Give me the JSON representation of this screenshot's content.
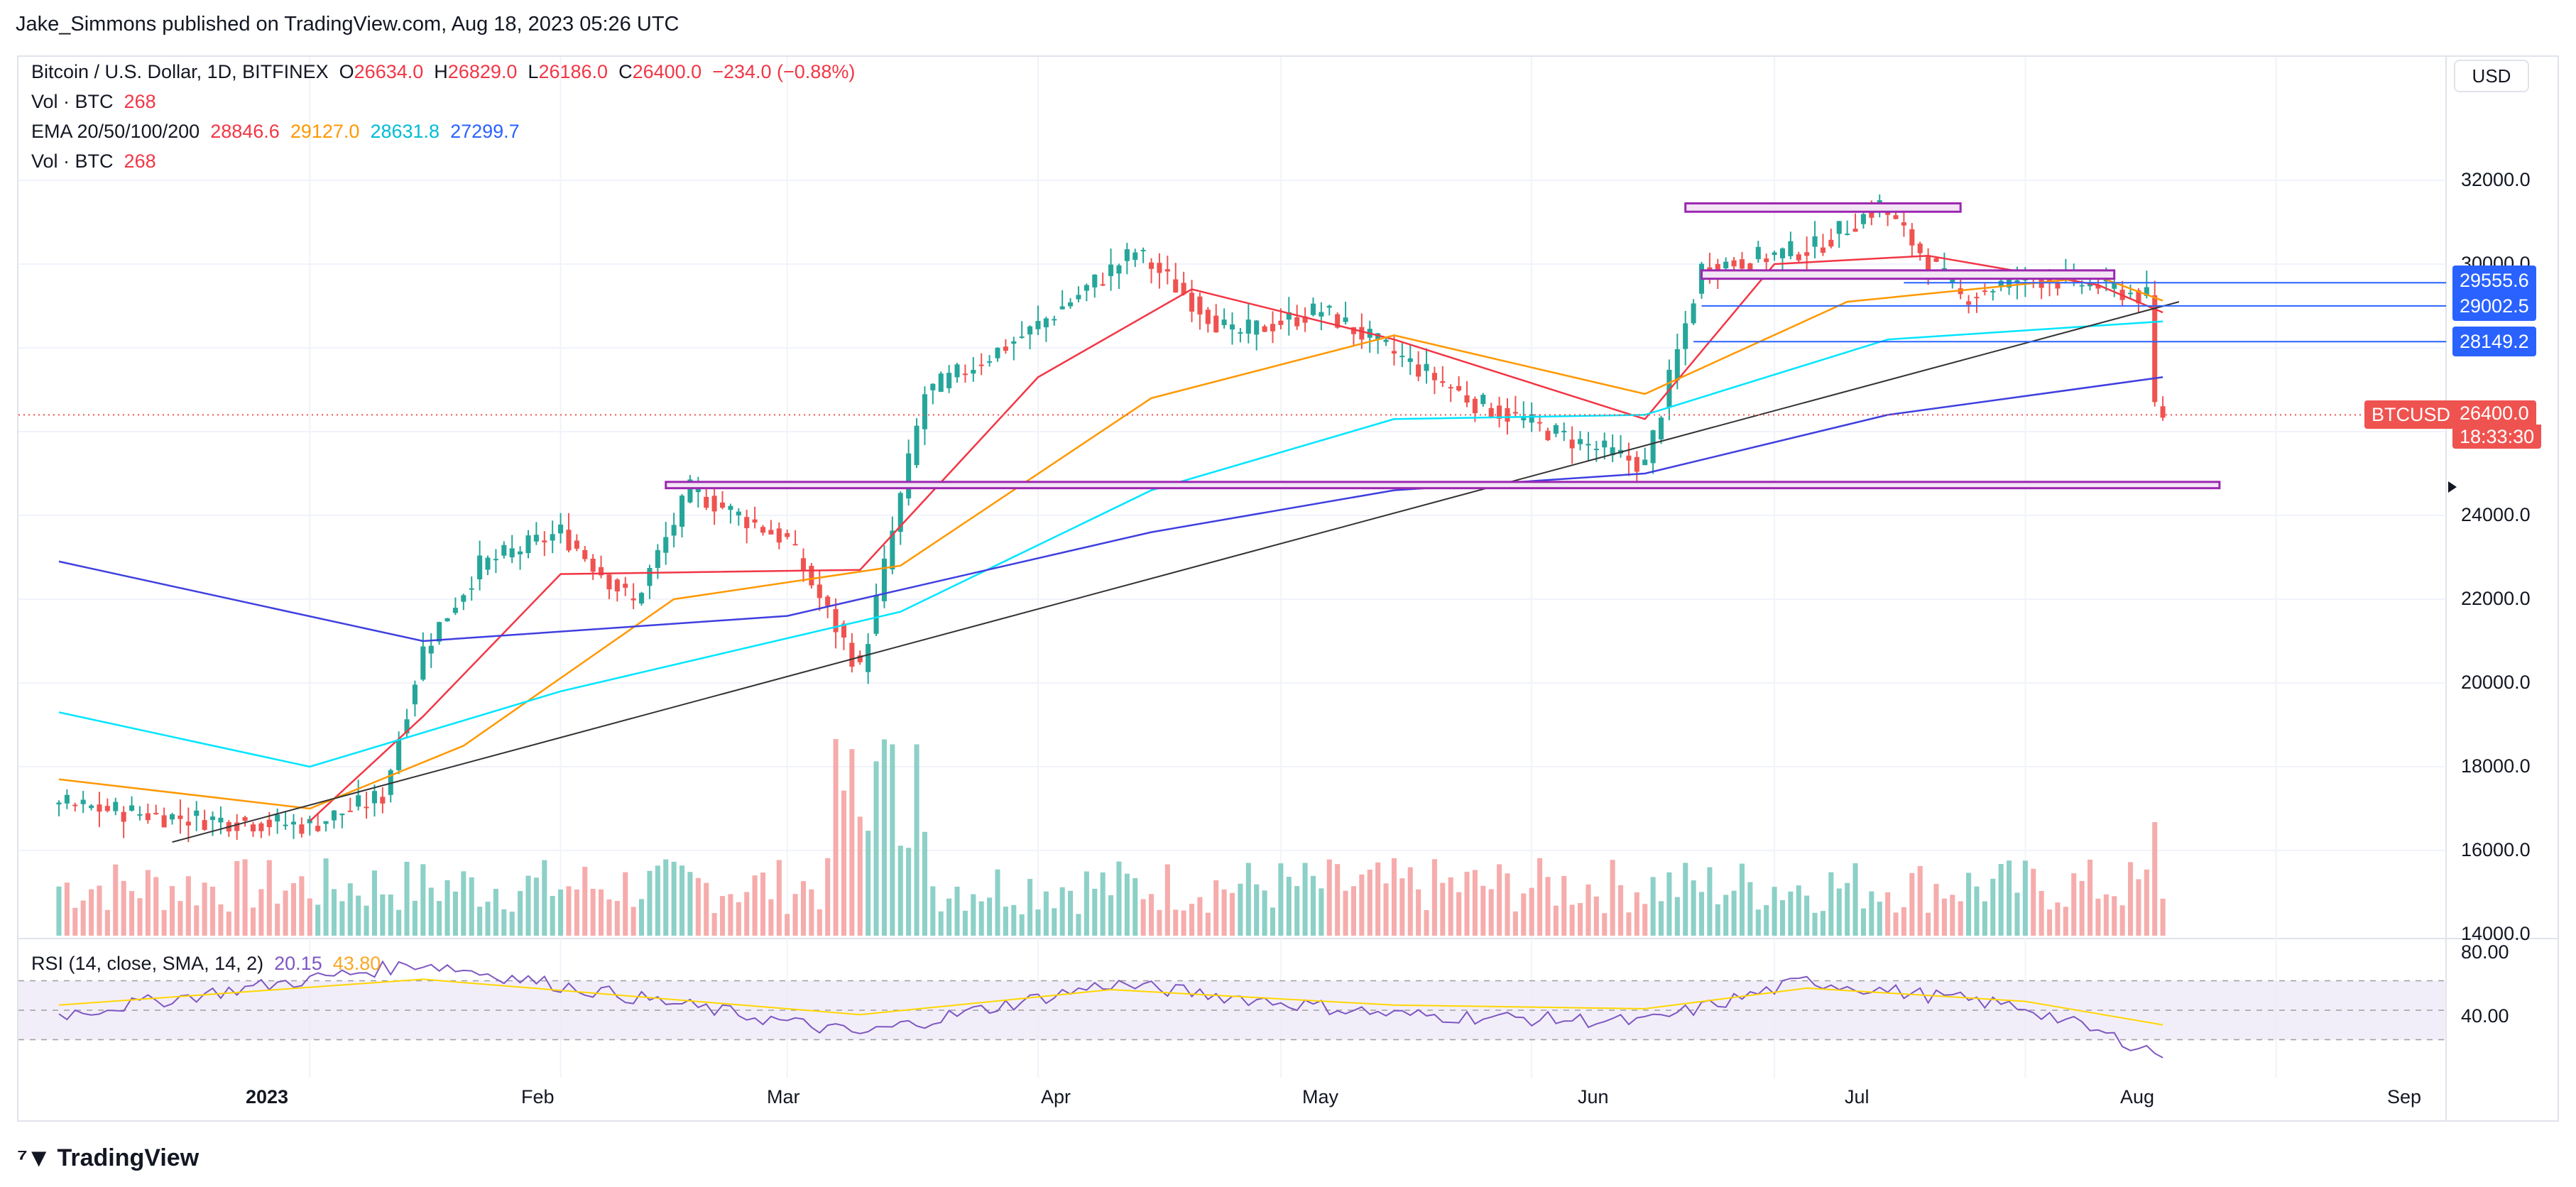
{
  "publisher_line": "Jake_Simmons published on TradingView.com, Aug 18, 2023 05:26 UTC",
  "header": {
    "symbol": "Bitcoin / U.S. Dollar, 1D, BITFINEX",
    "o_label": "O",
    "o_value": "26634.0",
    "h_label": "H",
    "h_value": "26829.0",
    "l_label": "L",
    "l_value": "26186.0",
    "c_label": "C",
    "c_value": "26400.0",
    "change": "−234.0 (−0.88%)",
    "vol_label": "Vol · BTC",
    "vol_value": "268",
    "ema_label": "EMA 20/50/100/200",
    "ema20": "28846.6",
    "ema50": "29127.0",
    "ema100": "28631.8",
    "ema200": "27299.7",
    "vol2_label": "Vol · BTC",
    "vol2_value": "268"
  },
  "currency_button": "USD",
  "price_labels": {
    "level1": "29555.6",
    "level2": "29002.5",
    "level3": "28149.2",
    "symbol_tag": "BTCUSD",
    "last_price": "26400.0",
    "countdown": "18:33:30"
  },
  "rsi": {
    "label": "RSI (14, close, SMA, 14, 2)",
    "value1": "20.15",
    "value2": "43.80",
    "ticks": [
      "80.00",
      "40.00"
    ]
  },
  "brand": "TradingView",
  "colors": {
    "up": "#26a69a",
    "down": "#ef5350",
    "ema20": "#f23645",
    "ema50": "#ff9800",
    "ema100": "#00e5ff",
    "ema200": "#3f3fe0",
    "zone": "#9c27b0",
    "rsi": "#7e57c2",
    "rsi_ma": "#ffd600"
  },
  "chart_data": {
    "type": "line",
    "title": "Bitcoin / U.S. Dollar, 1D, BITFINEX",
    "x_tick_labels": [
      "2023",
      "Feb",
      "Mar",
      "Apr",
      "May",
      "Jun",
      "Jul",
      "Aug",
      "Sep"
    ],
    "y_tick_labels": [
      "32000.0",
      "30000.0",
      "24000.0",
      "22000.0",
      "20000.0",
      "18000.0",
      "16000.0",
      "14000.0"
    ],
    "ylim": [
      13900,
      33800
    ],
    "series": [
      {
        "name": "Close",
        "x": [
          "2022-12-01",
          "2022-12-15",
          "2023-01-01",
          "2023-01-10",
          "2023-01-15",
          "2023-01-22",
          "2023-02-01",
          "2023-02-10",
          "2023-02-17",
          "2023-03-01",
          "2023-03-10",
          "2023-03-18",
          "2023-03-31",
          "2023-04-13",
          "2023-04-25",
          "2023-05-06",
          "2023-05-25",
          "2023-06-06",
          "2023-06-15",
          "2023-06-22",
          "2023-07-06",
          "2023-07-14",
          "2023-07-24",
          "2023-08-01",
          "2023-08-10",
          "2023-08-16",
          "2023-08-17",
          "2023-08-18"
        ],
        "y": [
          17100,
          16800,
          16600,
          17300,
          20800,
          22800,
          23600,
          21900,
          24600,
          23400,
          20300,
          26900,
          28400,
          30300,
          28300,
          28900,
          26700,
          25800,
          25200,
          29900,
          30400,
          31400,
          29200,
          29700,
          29500,
          29200,
          26600,
          26400
        ]
      },
      {
        "name": "EMA 20",
        "x": [
          "2023-01-01",
          "2023-01-15",
          "2023-02-01",
          "2023-03-10",
          "2023-04-01",
          "2023-04-20",
          "2023-05-15",
          "2023-06-15",
          "2023-07-01",
          "2023-07-20",
          "2023-08-10",
          "2023-08-18"
        ],
        "y": [
          16700,
          19200,
          22600,
          22700,
          27300,
          29400,
          28200,
          26300,
          30000,
          30200,
          29500,
          28846.6
        ]
      },
      {
        "name": "EMA 50",
        "x": [
          "2022-12-01",
          "2023-01-01",
          "2023-01-20",
          "2023-02-15",
          "2023-03-15",
          "2023-04-15",
          "2023-05-15",
          "2023-06-15",
          "2023-07-10",
          "2023-08-10",
          "2023-08-18"
        ],
        "y": [
          17700,
          17000,
          18500,
          22000,
          22800,
          26800,
          28300,
          26900,
          29100,
          29700,
          29127.0
        ]
      },
      {
        "name": "EMA 100",
        "x": [
          "2022-12-01",
          "2023-01-01",
          "2023-02-01",
          "2023-03-15",
          "2023-04-15",
          "2023-05-15",
          "2023-06-15",
          "2023-07-15",
          "2023-08-18"
        ],
        "y": [
          19300,
          18000,
          19800,
          21700,
          24600,
          26300,
          26400,
          28200,
          28631.8
        ]
      },
      {
        "name": "EMA 200",
        "x": [
          "2022-12-01",
          "2023-01-15",
          "2023-03-01",
          "2023-04-15",
          "2023-05-15",
          "2023-06-15",
          "2023-07-15",
          "2023-08-18"
        ],
        "y": [
          22900,
          21000,
          21600,
          23600,
          24600,
          25000,
          26400,
          27299.7
        ]
      },
      {
        "name": "RSI",
        "x": [
          "2022-12-01",
          "2023-01-15",
          "2023-03-10",
          "2023-04-10",
          "2023-05-15",
          "2023-06-15",
          "2023-07-05",
          "2023-08-01",
          "2023-08-18"
        ],
        "y": [
          47,
          82,
          34,
          68,
          47,
          42,
          70,
          52,
          20.15
        ]
      }
    ],
    "horizontal_levels": [
      29555.6,
      29002.5,
      28149.2,
      26400.0
    ],
    "last_price": 26400.0
  }
}
